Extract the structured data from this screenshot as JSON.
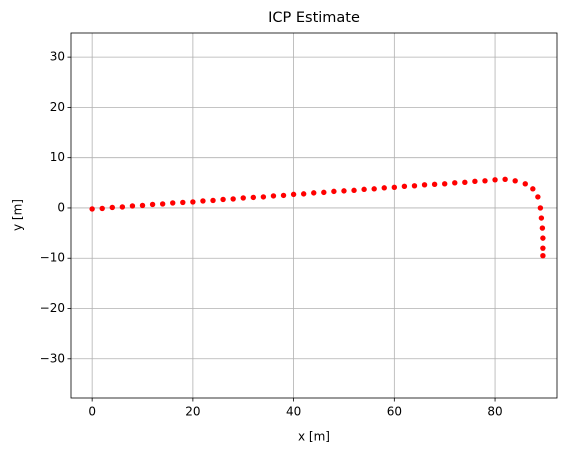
{
  "chart_data": {
    "type": "scatter",
    "title": "ICP Estimate",
    "x_label": "x [m]",
    "y_label": "y [m]",
    "series": [
      {
        "color": "#ff0000",
        "x": [
          0,
          2,
          4,
          6,
          8,
          10,
          12,
          14,
          16,
          18,
          20,
          22,
          24,
          26,
          28,
          30,
          32,
          34,
          36,
          38,
          40,
          42,
          44,
          46,
          48,
          50,
          52,
          54,
          56,
          58,
          60,
          62,
          64,
          66,
          68,
          70,
          72,
          74,
          76,
          78,
          80,
          82,
          84,
          86,
          87.5,
          88.5,
          89,
          89.2,
          89.4,
          89.5,
          89.5,
          89.5
        ],
        "values": [
          -0.2,
          -0.1,
          0.1,
          0.2,
          0.4,
          0.5,
          0.7,
          0.8,
          1.0,
          1.1,
          1.2,
          1.4,
          1.5,
          1.7,
          1.8,
          2.0,
          2.1,
          2.2,
          2.4,
          2.5,
          2.7,
          2.8,
          3.0,
          3.1,
          3.3,
          3.4,
          3.5,
          3.7,
          3.8,
          4.0,
          4.1,
          4.3,
          4.4,
          4.6,
          4.7,
          4.8,
          5.0,
          5.1,
          5.3,
          5.4,
          5.6,
          5.7,
          5.4,
          4.8,
          3.8,
          2.2,
          0,
          -2,
          -4,
          -6,
          -8,
          -9.5
        ]
      }
    ],
    "xlim": [
      -4.2,
      92.3
    ],
    "ylim": [
      -37.8,
      34.8
    ],
    "xticks": [
      0,
      20,
      40,
      60,
      80
    ],
    "yticks": [
      {
        "value": -30,
        "label": "−30"
      },
      {
        "value": -20,
        "label": "−20"
      },
      {
        "value": -10,
        "label": "−10"
      },
      0,
      10,
      20,
      30
    ],
    "grid": true
  }
}
